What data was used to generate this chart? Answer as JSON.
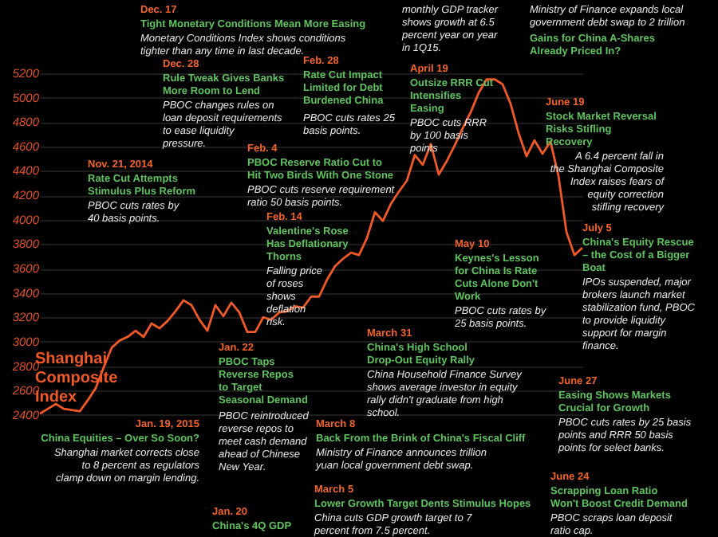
{
  "chart_data": {
    "type": "line",
    "categories": [
      null,
      null,
      null,
      null,
      null,
      null,
      null,
      null,
      null,
      null,
      null,
      null,
      null,
      null,
      null,
      null,
      null,
      null,
      null,
      null,
      null,
      null,
      null,
      null,
      null,
      null,
      null,
      null,
      null,
      null,
      null,
      null,
      null,
      null,
      null,
      null,
      null,
      null,
      null,
      null,
      null,
      null,
      null,
      null,
      null,
      null,
      null,
      null,
      null,
      null,
      null,
      null,
      null,
      null,
      null,
      null,
      null,
      null,
      null,
      null,
      null,
      null,
      null,
      null,
      null,
      null,
      null,
      null,
      null
    ],
    "series": [
      {
        "name": "Shanghai Composite Index",
        "color": "#f05a28",
        "values": [
          2410,
          2450,
          2490,
          2450,
          2440,
          2430,
          2520,
          2620,
          2790,
          2950,
          3010,
          3040,
          3090,
          3040,
          3150,
          3110,
          3170,
          3250,
          3340,
          3300,
          3180,
          3090,
          3300,
          3210,
          3320,
          3240,
          3080,
          3080,
          3200,
          3180,
          3240,
          3250,
          3290,
          3280,
          3370,
          3370,
          3510,
          3620,
          3680,
          3730,
          3710,
          3850,
          4060,
          3990,
          4130,
          4230,
          4320,
          4530,
          4450,
          4620,
          4370,
          4480,
          4610,
          4750,
          4880,
          5040,
          5150,
          5150,
          5110,
          4950,
          4710,
          4520,
          4650,
          4540,
          4640,
          4360,
          3900,
          3710,
          3770
        ]
      }
    ],
    "ylim": [
      1400,
      5800
    ],
    "yticks": [
      2400,
      2600,
      2800,
      3000,
      3200,
      3400,
      3600,
      3800,
      4000,
      4200,
      4400,
      4600,
      4800,
      5000,
      5200
    ],
    "grid": "y",
    "marker": "none",
    "line_style": "solid",
    "annotations": [
      "Dec. 17",
      "Tight Monetary Conditions Mean More Easing",
      "Monetary Conditions Index shows conditions tighter than any time in last decade.",
      "monthly GDP tracker shows growth at 6.5 percent year on year in 1Q15.",
      "Ministry of Finance expands local government debt swap to 2 trillion",
      "Gains for China A-Shares Already Priced In?",
      "Dec. 28",
      "Rule Tweak Gives Banks More Room to Lend",
      "PBOC changes rules on loan deposit requirements to ease liquidity pressure.",
      "Feb. 28",
      "Rate Cut Impact Limited for Debt Burdened China",
      "PBOC cuts rates 25 basis points.",
      "April 19",
      "Outsize RRR Cut Intensifies Easing",
      "PBOC cuts RRR by 100 basis points",
      "June 19",
      "Stock Market Reversal Risks Stifling Recovery",
      "A 6.4 percent fall in the Shanghai Composite Index raises fears of equity correction stifling recovery",
      "Nov. 21, 2014",
      "Rate Cut Attempts Stimulus Plus Reform",
      "PBOC cuts rates by 40 basis points.",
      "Feb. 4",
      "PBOC Reserve Ratio Cut to Hit Two Birds With One Stone",
      "PBOC cuts reserve requirement ratio 50 basis points.",
      "Feb. 14",
      "Valentine's Rose Has Deflationary Thorns",
      "Falling price of roses shows deflation risk.",
      "May 10",
      "Keynes's Lesson for China Is Rate Cuts Alone Don't Work",
      "PBOC cuts rates by 25 basis points.",
      "July 5",
      "China's Equity Rescue – the Cost of a Bigger Boat",
      "IPOs suspended, major brokers launch market stabilization fund, PBOC to provide liquidity support for margin finance.",
      "March 31",
      "China's High School Drop-Out Equity Rally",
      "China Household Finance Survey shows average investor in equity rally didn't graduate from high school.",
      "Jan. 22",
      "PBOC Taps Reverse Repos to Target Seasonal Demand",
      "PBOC reintroduced reverse repos to meet cash demand ahead of Chinese New Year.",
      "Jan. 19, 2015",
      "China Equities – Over So Soon?",
      "Shanghai market corrects close to 8 percent as regulators clamp down on margin lending.",
      "Jan. 20",
      "China's 4Q GDP",
      "March 8",
      "Back From the Brink of China's Fiscal Cliff",
      "Ministry of Finance announces trillion yuan local government debt swap.",
      "March 5",
      "Lower Growth Target Dents Stimulus Hopes",
      "China cuts GDP growth target to 7 percent from 7.5 percent.",
      "June 27",
      "Easing Shows Markets Crucial for Growth",
      "PBOC cuts rates by 25 basis points and RRR 50 basis points for select banks.",
      "June 24",
      "Scrapping Loan Ratio Won't Boost Credit Demand",
      "PBOC scraps loan deposit ratio cap."
    ]
  }
}
